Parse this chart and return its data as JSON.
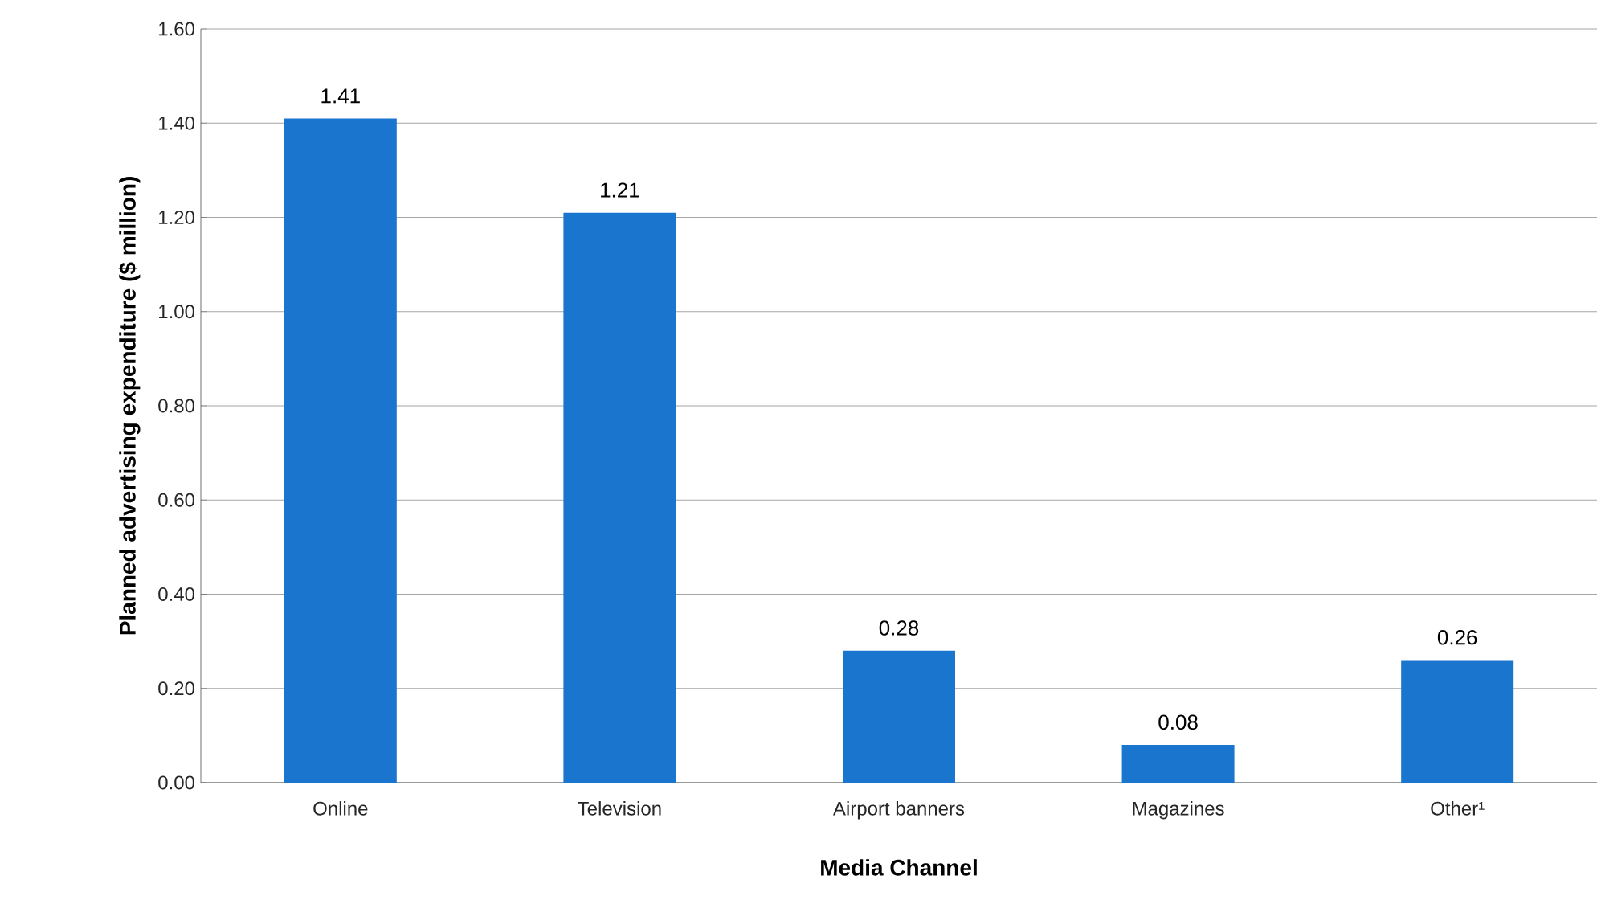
{
  "chart_data": {
    "type": "bar",
    "xlabel": "Media Channel",
    "ylabel": "Planned advertising expenditure ($ million)",
    "categories": [
      "Online",
      "Television",
      "Airport banners",
      "Magazines",
      "Other¹"
    ],
    "values": [
      1.41,
      1.21,
      0.28,
      0.08,
      0.26
    ],
    "value_labels": [
      "1.41",
      "1.21",
      "0.28",
      "0.08",
      "0.26"
    ],
    "color": "#1a75cf",
    "ylim": [
      0,
      1.6
    ],
    "yticks": [
      {
        "value": 0,
        "label": "0.00"
      },
      {
        "value": 0.2,
        "label": "0.20"
      },
      {
        "value": 0.4,
        "label": "0.40"
      },
      {
        "value": 0.6,
        "label": "0.60"
      },
      {
        "value": 0.8,
        "label": "0.80"
      },
      {
        "value": 1.0,
        "label": "1.00"
      },
      {
        "value": 1.2,
        "label": "1.20"
      },
      {
        "value": 1.4,
        "label": "1.40"
      },
      {
        "value": 1.6,
        "label": "1.60"
      }
    ],
    "grid": "y"
  }
}
